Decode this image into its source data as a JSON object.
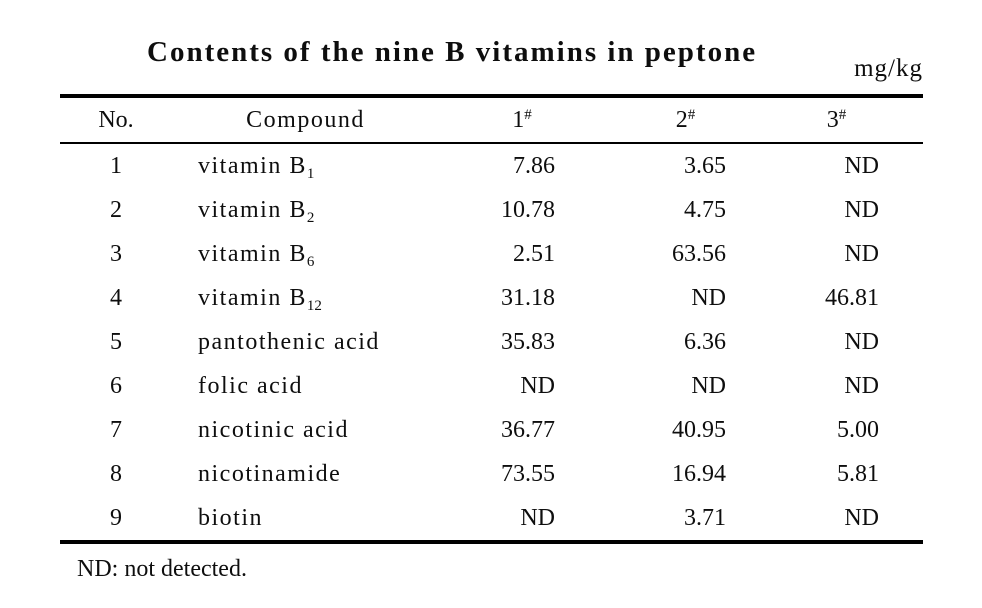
{
  "table": {
    "title": "Contents of the nine B vitamins in peptone",
    "unit": "mg/kg",
    "columns": {
      "no": "No.",
      "compound": "Compound",
      "s1": {
        "num": "1",
        "sup": "#"
      },
      "s2": {
        "num": "2",
        "sup": "#"
      },
      "s3": {
        "num": "3",
        "sup": "#"
      }
    },
    "rows": [
      {
        "no": "1",
        "compound": "vitamin B",
        "sub": "1",
        "v1": "7.86",
        "v2": "3.65",
        "v3": "ND"
      },
      {
        "no": "2",
        "compound": "vitamin B",
        "sub": "2",
        "v1": "10.78",
        "v2": "4.75",
        "v3": "ND"
      },
      {
        "no": "3",
        "compound": "vitamin B",
        "sub": "6",
        "v1": "2.51",
        "v2": "63.56",
        "v3": "ND"
      },
      {
        "no": "4",
        "compound": "vitamin B",
        "sub": "12",
        "v1": "31.18",
        "v2": "ND",
        "v3": "46.81"
      },
      {
        "no": "5",
        "compound": "pantothenic acid",
        "sub": "",
        "v1": "35.83",
        "v2": "6.36",
        "v3": "ND"
      },
      {
        "no": "6",
        "compound": "folic acid",
        "sub": "",
        "v1": "ND",
        "v2": "ND",
        "v3": "ND"
      },
      {
        "no": "7",
        "compound": "nicotinic acid",
        "sub": "",
        "v1": "36.77",
        "v2": "40.95",
        "v3": "5.00"
      },
      {
        "no": "8",
        "compound": "nicotinamide",
        "sub": "",
        "v1": "73.55",
        "v2": "16.94",
        "v3": "5.81"
      },
      {
        "no": "9",
        "compound": "biotin",
        "sub": "",
        "v1": "ND",
        "v2": "3.71",
        "v3": "ND"
      }
    ],
    "footnote": "ND: not detected."
  },
  "chart_data": {
    "type": "table",
    "title": "Contents of the nine B vitamins in peptone",
    "unit": "mg/kg",
    "columns": [
      "No.",
      "Compound",
      "1#",
      "2#",
      "3#"
    ],
    "rows": [
      [
        "1",
        "vitamin B₁",
        "7.86",
        "3.65",
        "ND"
      ],
      [
        "2",
        "vitamin B₂",
        "10.78",
        "4.75",
        "ND"
      ],
      [
        "3",
        "vitamin B₆",
        "2.51",
        "63.56",
        "ND"
      ],
      [
        "4",
        "vitamin B₁₂",
        "31.18",
        "ND",
        "46.81"
      ],
      [
        "5",
        "pantothenic acid",
        "35.83",
        "6.36",
        "ND"
      ],
      [
        "6",
        "folic acid",
        "ND",
        "ND",
        "ND"
      ],
      [
        "7",
        "nicotinic acid",
        "36.77",
        "40.95",
        "5.00"
      ],
      [
        "8",
        "nicotinamide",
        "73.55",
        "16.94",
        "5.81"
      ],
      [
        "9",
        "biotin",
        "ND",
        "3.71",
        "ND"
      ]
    ],
    "footnote": "ND: not detected."
  }
}
